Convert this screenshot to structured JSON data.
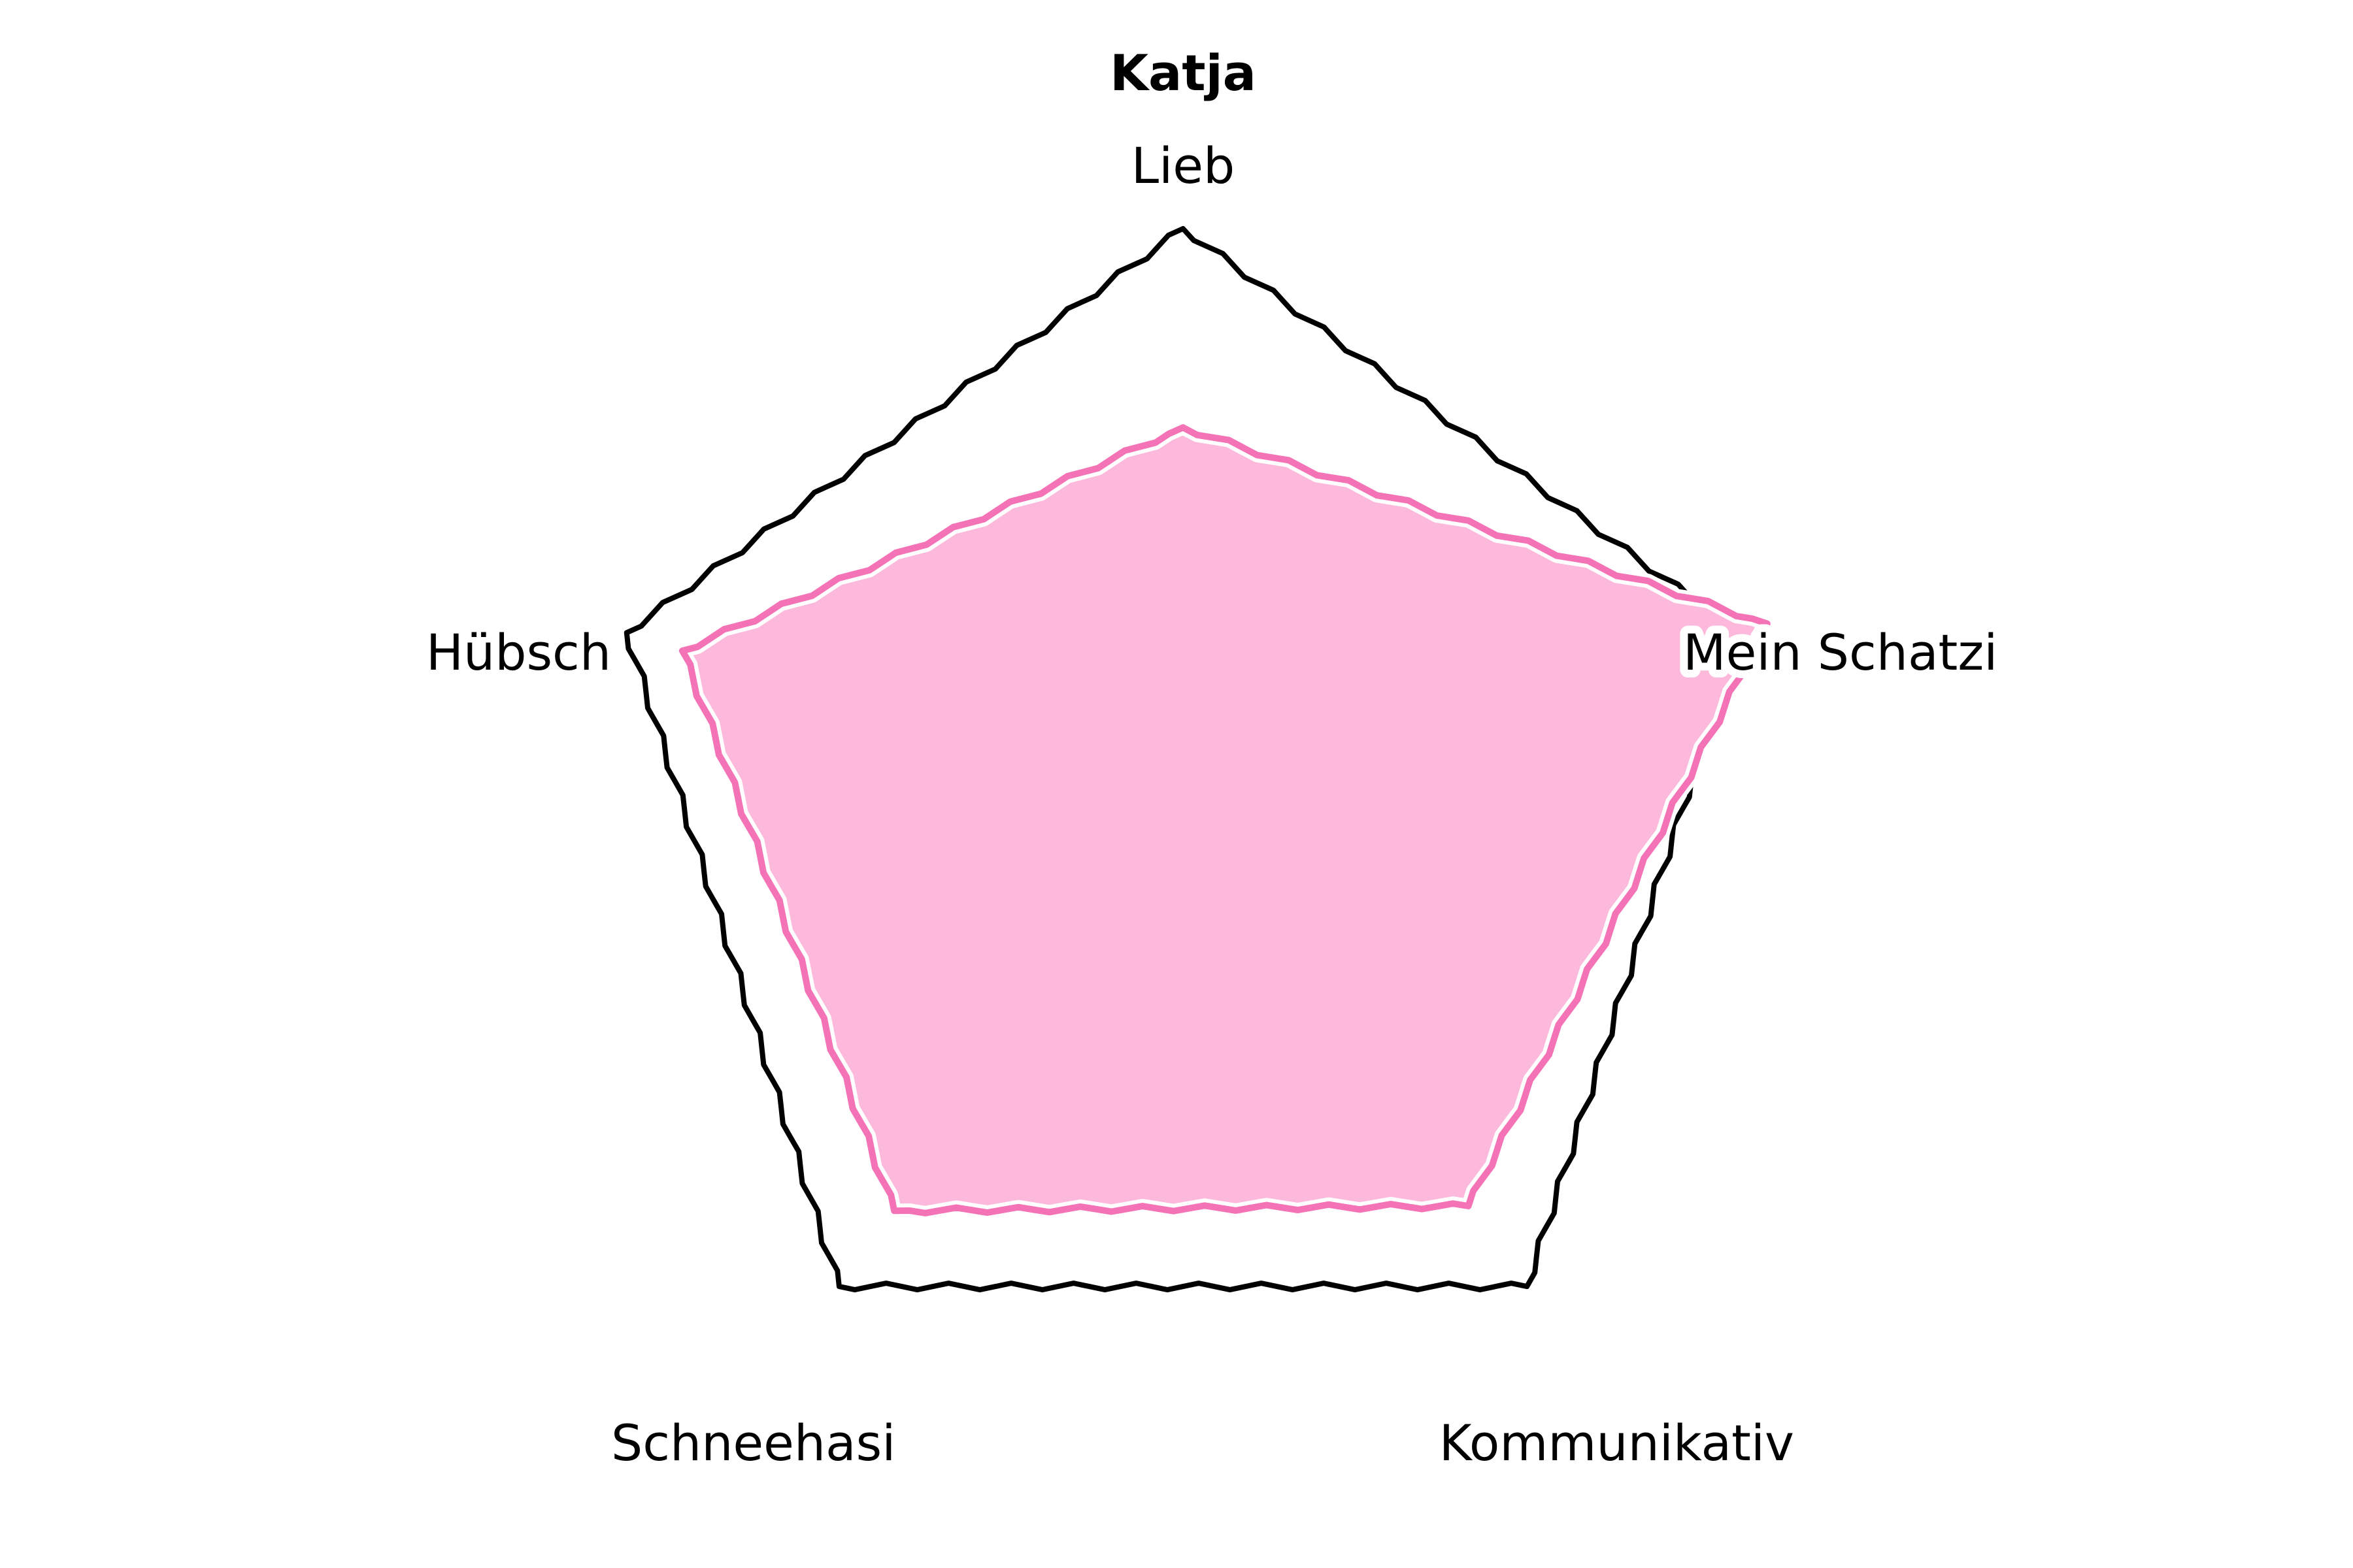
{
  "chart_data": {
    "type": "radar",
    "title": "Katja",
    "categories": [
      "Lieb",
      "Mein Schatzi",
      "Kommunikativ",
      "Schneehasi",
      "Hübsch"
    ],
    "series": [
      {
        "values": [
          6.6,
          10.5,
          8.3,
          8.4,
          9.0
        ]
      }
    ],
    "rlim": [
      0,
      10
    ],
    "grid": false,
    "style": "xkcd-sketch",
    "colors": {
      "fill": "#fdb9db",
      "line": "#f472b6",
      "frame": "#000000",
      "halo": "#ffffff"
    }
  }
}
